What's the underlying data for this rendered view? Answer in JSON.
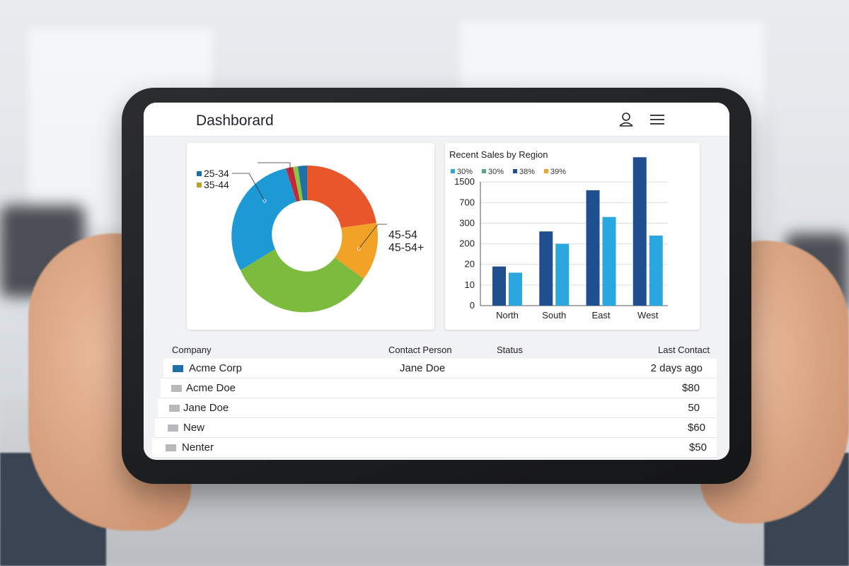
{
  "header": {
    "title": "Dashborard"
  },
  "icons": {
    "user": "user-icon",
    "menu": "hamburger-menu-icon"
  },
  "donut": {
    "label_left_1": "25-34",
    "label_left_2": "35-44",
    "label_right_1": "45-54",
    "label_right_2": "45-54+",
    "colors": {
      "orange_red": "#e8572a",
      "orange": "#f2a227",
      "green": "#7dbb3f",
      "blue": "#1d9ad6",
      "red": "#c4263a",
      "lime": "#8cc63f",
      "navy": "#1f6fa8"
    }
  },
  "chart_data": {
    "type": "bar",
    "title": "Recent Sales by Region",
    "legend": [
      "30%",
      "30%",
      "38%",
      "39%"
    ],
    "legend_colors": [
      "#2aa7df",
      "#4caf7a",
      "#1f4f8f",
      "#f2a227"
    ],
    "legend_position": "top-left",
    "categories": [
      "North",
      "South",
      "East",
      "West"
    ],
    "y_ticks": [
      "0",
      "10",
      "20",
      "200",
      "300",
      "700",
      "1500"
    ],
    "series": [
      {
        "values": [
          1.9,
          3.6,
          5.6,
          7.2
        ],
        "color": "#1f4f8f"
      },
      {
        "values": [
          1.6,
          3.0,
          4.3,
          3.4
        ],
        "color": "#2aa7df"
      }
    ],
    "note": "values are tick-index positions along the printed (non-linear) axis"
  },
  "table": {
    "headers": {
      "company": "Company",
      "contact": "Contact Person",
      "status": "Status",
      "last": "Last Contact"
    },
    "rows": [
      {
        "company": "Acme Corp",
        "contact": "Jane Doe",
        "last": "2 days ago"
      },
      {
        "company": "Acme Doe",
        "contact": "",
        "last": "$80"
      },
      {
        "company": "Jane Doe",
        "contact": "",
        "last": "50"
      },
      {
        "company": "New",
        "contact": "",
        "last": "$60"
      },
      {
        "company": "Nenter",
        "contact": "",
        "last": "$50"
      }
    ]
  }
}
